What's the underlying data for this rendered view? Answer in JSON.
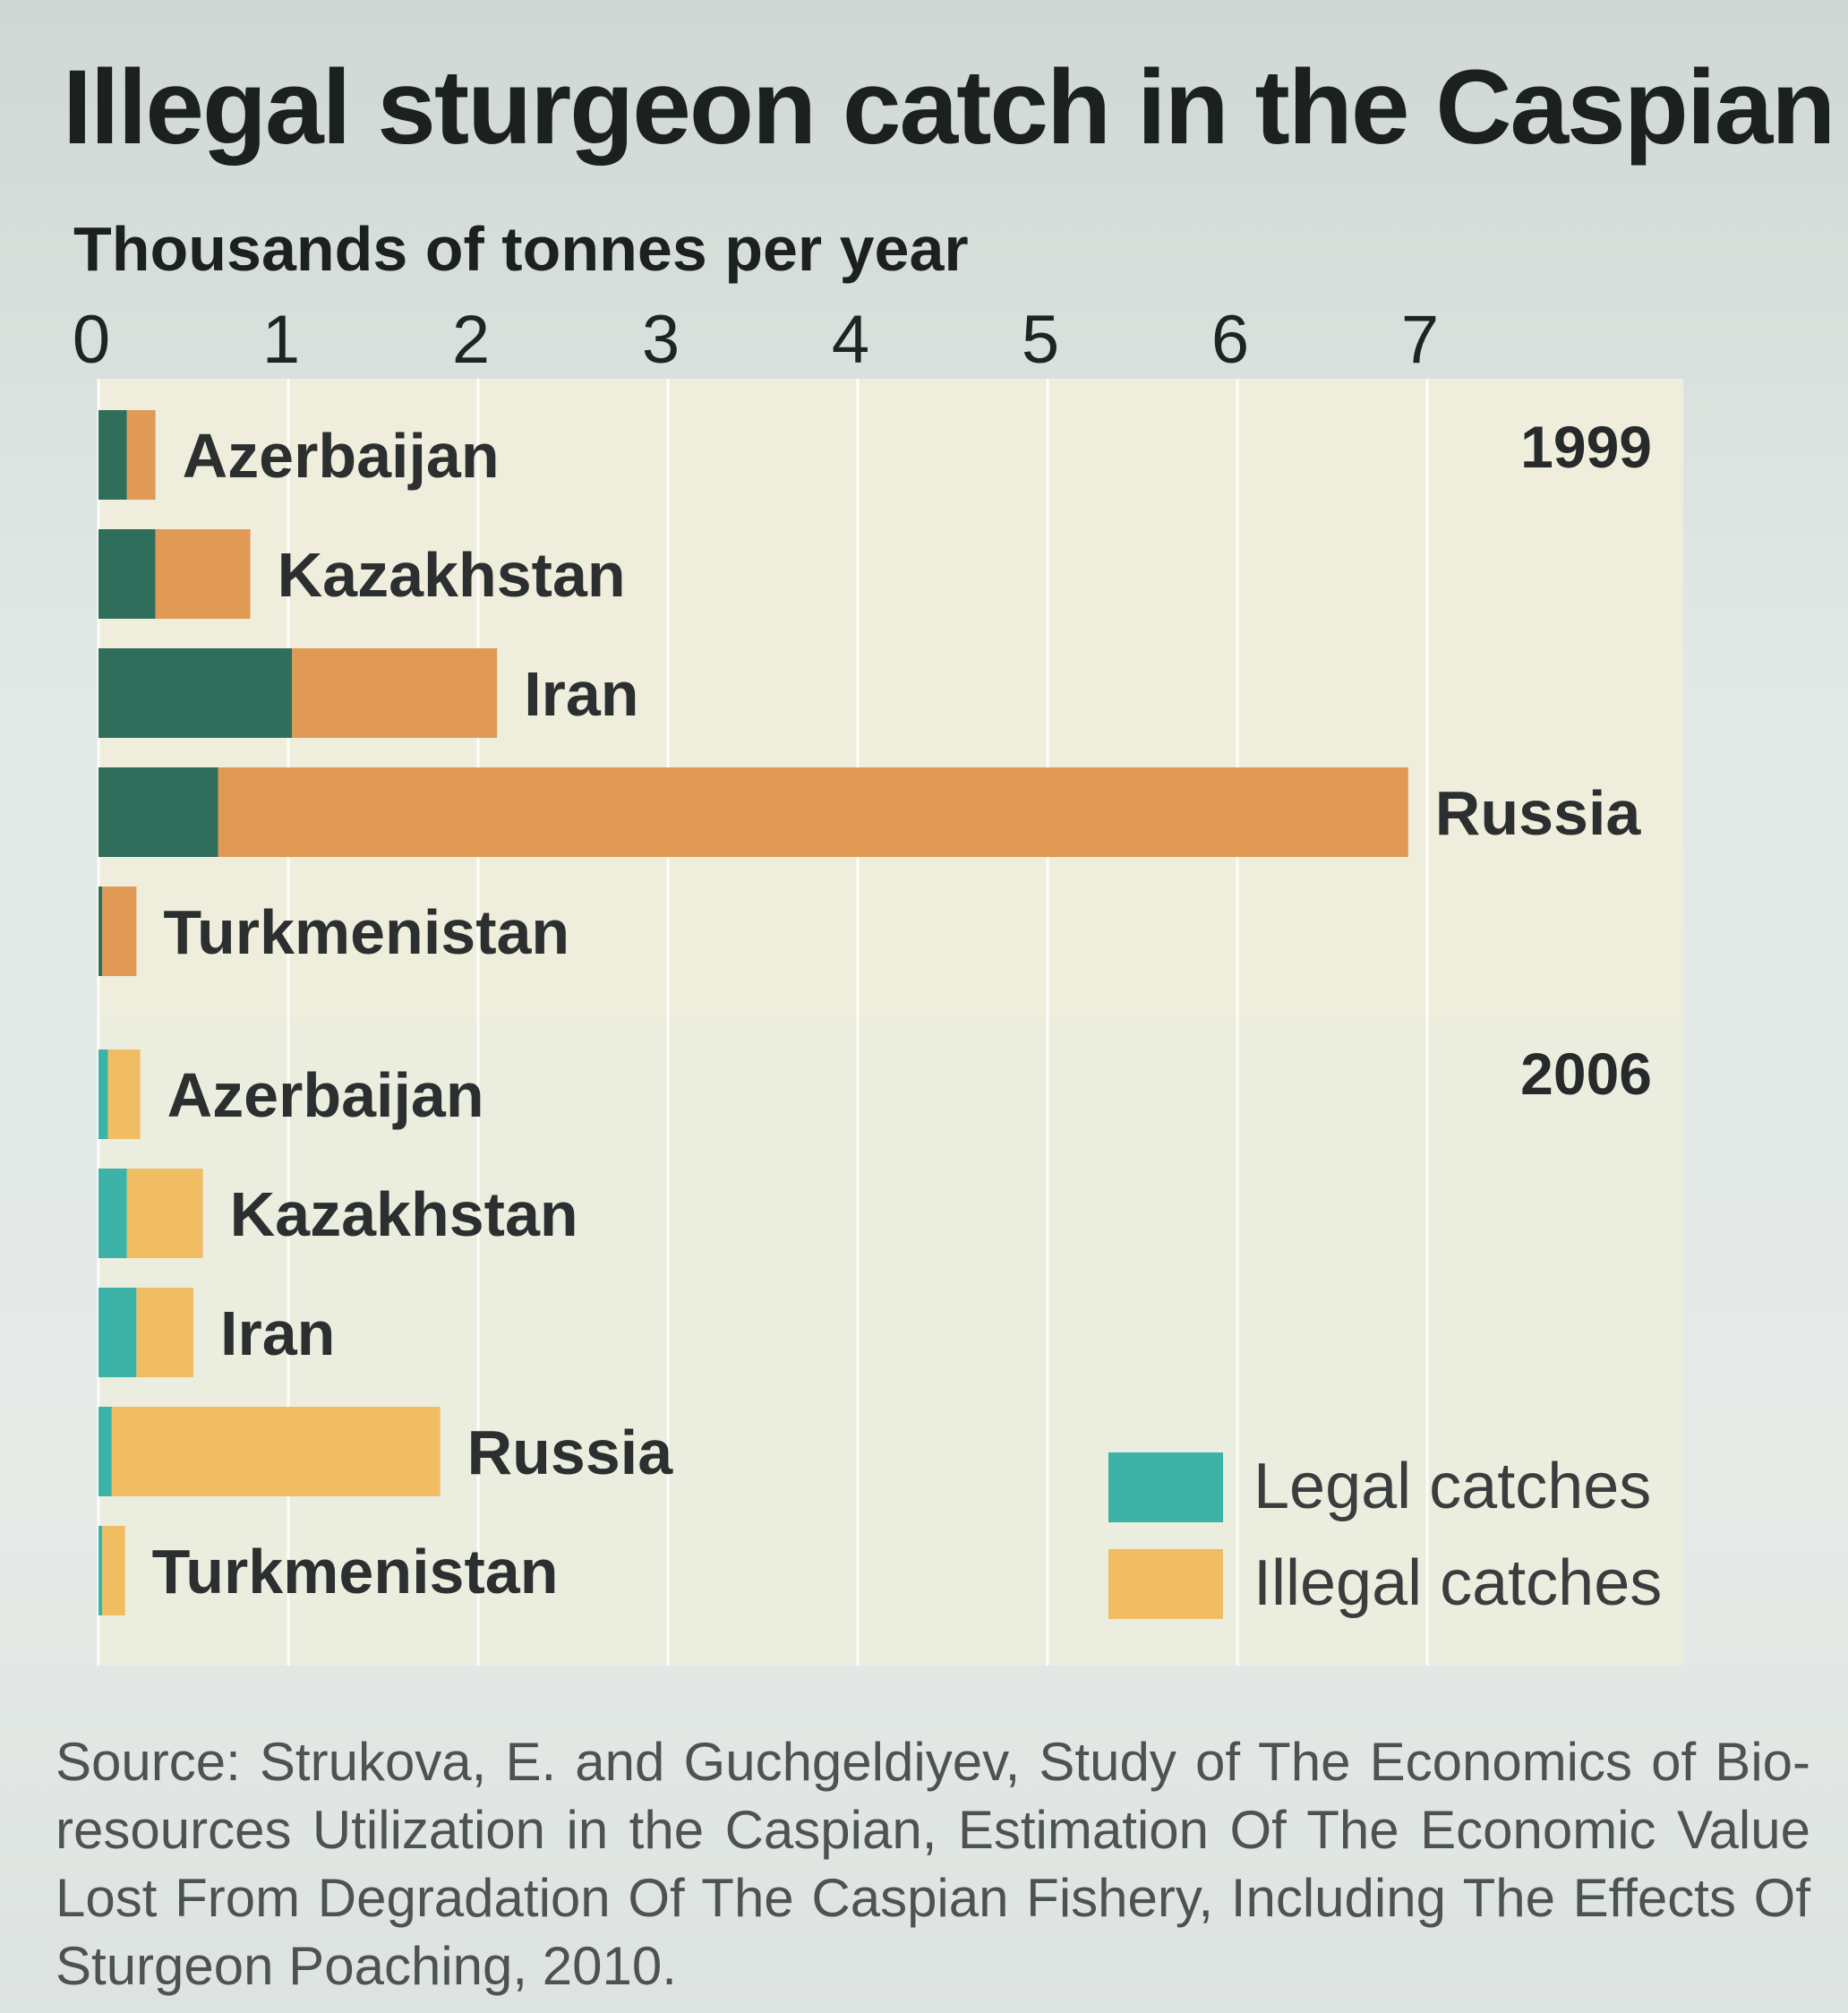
{
  "title": "Illegal sturgeon catch in the Caspian",
  "units": "Thousands of tonnes per year",
  "source": "Source: Strukova, E. and Guchgeldiyev, Study of The Economics of Bio-resources Utilization in the Caspian, Estimation Of The Economic Value Lost From Degradation Of The Caspian Fishery, Including The Effects Of Sturgeon Poaching, 2010.",
  "colors": {
    "legal_1999": "#2f6e5a",
    "illegal_1999": "#e09a55",
    "legal_2006": "#3db3a8",
    "illegal_2006": "#f0bd62"
  },
  "chart_data": {
    "type": "bar",
    "orientation": "horizontal",
    "stacked": true,
    "xlim": [
      0,
      7
    ],
    "xticks": [
      "0",
      "1",
      "2",
      "3",
      "4",
      "5",
      "6",
      "7"
    ],
    "grid": true,
    "legend_position": "bottom-right",
    "series_names": [
      "Legal catches",
      "Illegal catches"
    ],
    "panels": [
      {
        "year": "1999",
        "categories": [
          "Azerbaijan",
          "Kazakhstan",
          "Iran",
          "Russia",
          "Turkmenistan"
        ],
        "series": [
          {
            "name": "Legal catches",
            "values": [
              0.15,
              0.3,
              1.02,
              0.63,
              0.02
            ]
          },
          {
            "name": "Illegal catches",
            "values": [
              0.15,
              0.5,
              1.08,
              6.27,
              0.18
            ]
          }
        ]
      },
      {
        "year": "2006",
        "categories": [
          "Azerbaijan",
          "Kazakhstan",
          "Iran",
          "Russia",
          "Turkmenistan"
        ],
        "series": [
          {
            "name": "Legal catches",
            "values": [
              0.05,
              0.15,
              0.2,
              0.07,
              0.02
            ]
          },
          {
            "name": "Illegal catches",
            "values": [
              0.17,
              0.4,
              0.3,
              1.73,
              0.12
            ]
          }
        ]
      }
    ]
  }
}
